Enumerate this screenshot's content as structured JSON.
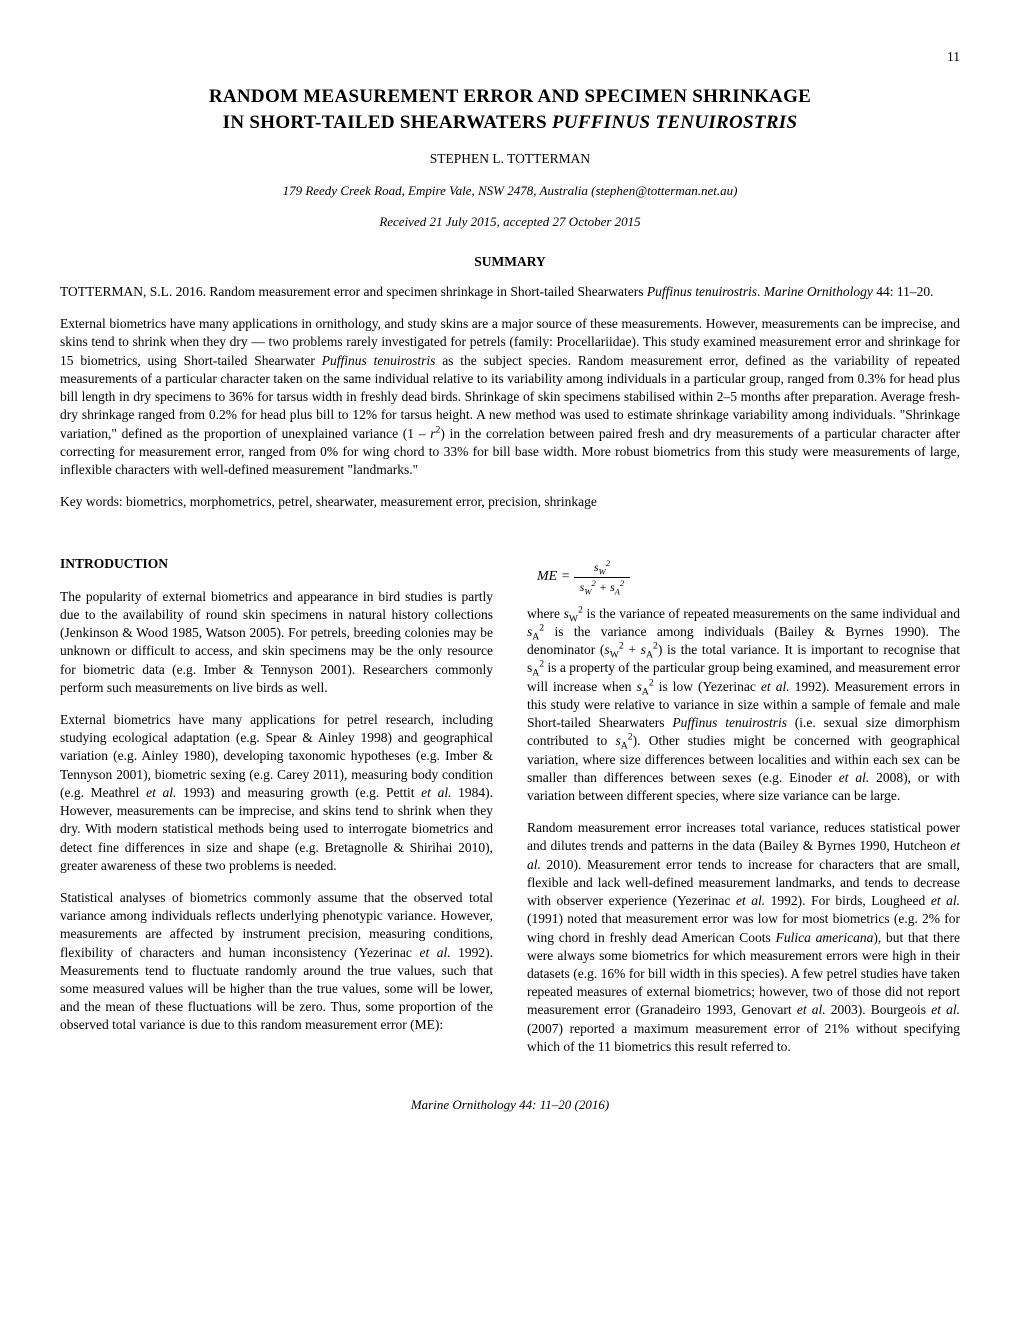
{
  "page_number": "11",
  "title_line1": "RANDOM MEASUREMENT ERROR AND SPECIMEN SHRINKAGE",
  "title_line2": "IN SHORT-TAILED SHEARWATERS ",
  "title_species": "PUFFINUS TENUIROSTRIS",
  "author": "STEPHEN L. TOTTERMAN",
  "affiliation": "179 Reedy Creek Road, Empire Vale, NSW 2478, Australia (stephen@totterman.net.au)",
  "received": "Received 21 July 2015, accepted 27 October 2015",
  "summary_heading": "SUMMARY",
  "citation_prefix": "TOTTERMAN, S.L. 2016. Random measurement error and specimen shrinkage in Short-tailed Shearwaters ",
  "citation_species": "Puffinus tenuirostris",
  "citation_journal": "Marine Ornithology",
  "citation_suffix": " 44: 11–20.",
  "summary_p1a": "External biometrics have many applications in ornithology, and study skins are a major source of these measurements. However, measurements can be imprecise, and skins tend to shrink when they dry — two problems rarely investigated for petrels (family: Procellariidae). This study examined measurement error and shrinkage for 15 biometrics, using Short-tailed Shearwater ",
  "summary_p1b": " as the subject species. Random measurement error, defined as the variability of repeated measurements of a particular character taken on the same individual relative to its variability among individuals in a particular group, ranged from 0.3% for head plus bill length in dry specimens to 36% for tarsus width in freshly dead birds. Shrinkage of skin specimens stabilised within 2–5 months after preparation. Average fresh-dry shrinkage ranged from 0.2% for head plus bill to 12% for tarsus height. A new method was used to estimate shrinkage variability among individuals. \"Shrinkage variation,\" defined as the proportion of unexplained variance (1 – ",
  "summary_r2": "r",
  "summary_p1c": ") in the correlation between paired fresh and dry measurements of a particular character after correcting for measurement error, ranged from 0% for wing chord to 33% for bill base width. More robust biometrics from this study were measurements of large, inflexible characters with well-defined measurement \"landmarks.\"",
  "keywords": "Key words: biometrics, morphometrics, petrel, shearwater, measurement error, precision, shrinkage",
  "introduction_heading": "INTRODUCTION",
  "intro_p1": "The popularity of external biometrics and appearance in bird studies is partly due to the availability of round skin specimens in natural history collections (Jenkinson & Wood 1985, Watson 2005). For petrels, breeding colonies may be unknown or difficult to access, and skin specimens may be the only resource for biometric data (e.g. Imber & Tennyson 2001). Researchers commonly perform such measurements on live birds as well.",
  "intro_p2a": "External biometrics have many applications for petrel research, including studying ecological adaptation (e.g. Spear & Ainley 1998) and geographical variation (e.g. Ainley 1980), developing taxonomic hypotheses (e.g. Imber & Tennyson 2001), biometric sexing (e.g. Carey 2011), measuring body condition (e.g. Meathrel ",
  "intro_p2b": " 1993) and measuring growth (e.g. Pettit ",
  "intro_p2c": " 1984). However, measurements can be imprecise, and skins tend to shrink when they dry. With modern statistical methods being used to interrogate biometrics and detect fine differences in size and shape (e.g. Bretagnolle & Shirihai 2010), greater awareness of these two problems is needed.",
  "intro_p3a": "Statistical analyses of biometrics commonly assume that the observed total variance among individuals reflects underlying phenotypic variance. However, measurements are affected by instrument precision, measuring conditions, flexibility of characters and human inconsistency (Yezerinac ",
  "intro_p3b": " 1992). Measurements tend to fluctuate randomly around the true values, such that some measured values will be higher than the true values, some will be lower, and the mean of these fluctuations will be zero. Thus, some proportion of the observed total variance is due to this random measurement error (ME):",
  "eq_lhs": "ME",
  "eq_eq": " = ",
  "eq_num_s": "s",
  "eq_num_sub": "W",
  "eq_den_s1": "s",
  "eq_den_sub1": "W",
  "eq_den_plus": " + ",
  "eq_den_s2": "s",
  "eq_den_sub2": "A",
  "col2_p1a": "where ",
  "col2_p1var1": "s",
  "col2_p1b": " is the variance of repeated measurements on the same individual and ",
  "col2_p1var2": "s",
  "col2_p1c": " is the variance among individuals (Bailey & Byrnes 1990). The denominator (",
  "col2_p1d": ") is the total variance. It is important to recognise that ",
  "col2_p1e": " is a property of the particular group being examined, and measurement error will increase when ",
  "col2_p1f": " is low (Yezerinac ",
  "col2_p1g": " 1992). Measurement errors in this study were relative to variance in size within a sample of female and male Short-tailed Shearwaters ",
  "col2_p1species": "Puffinus tenuirostris",
  "col2_p1h": " (i.e. sexual size dimorphism contributed to ",
  "col2_p1i": "). Other studies might be concerned with geographical variation, where size differences between localities and within each sex can be smaller than differences between sexes (e.g. Einoder ",
  "col2_p1j": " 2008), or with variation between different species, where size variance can be large.",
  "col2_p2a": "Random measurement error increases total variance, reduces statistical power and dilutes trends and patterns in the data (Bailey & Byrnes 1990, Hutcheon ",
  "col2_p2b": " 2010). Measurement error tends to increase for characters that are small, flexible and lack well-defined measurement landmarks, and tends to decrease with observer experience (Yezerinac ",
  "col2_p2c": " 1992). For birds, Lougheed ",
  "col2_p2d": " (1991) noted that measurement error was low for most biometrics (e.g. 2% for wing chord in freshly dead American Coots ",
  "col2_p2species": "Fulica americana",
  "col2_p2e": "), but that there were always some biometrics for which measurement errors were high in their datasets (e.g. 16% for bill width in this species). A few petrel studies have taken repeated measures of external biometrics; however, two of those did not report measurement error (Granadeiro 1993, Genovart ",
  "col2_p2f": " 2003). Bourgeois ",
  "col2_p2g": " (2007) reported a maximum measurement error of 21% without specifying which of the 11 biometrics this result referred to.",
  "etal": "et al.",
  "footer_journal": "Marine Ornithology",
  "footer_text": " 44: 11–20 (2016)"
}
